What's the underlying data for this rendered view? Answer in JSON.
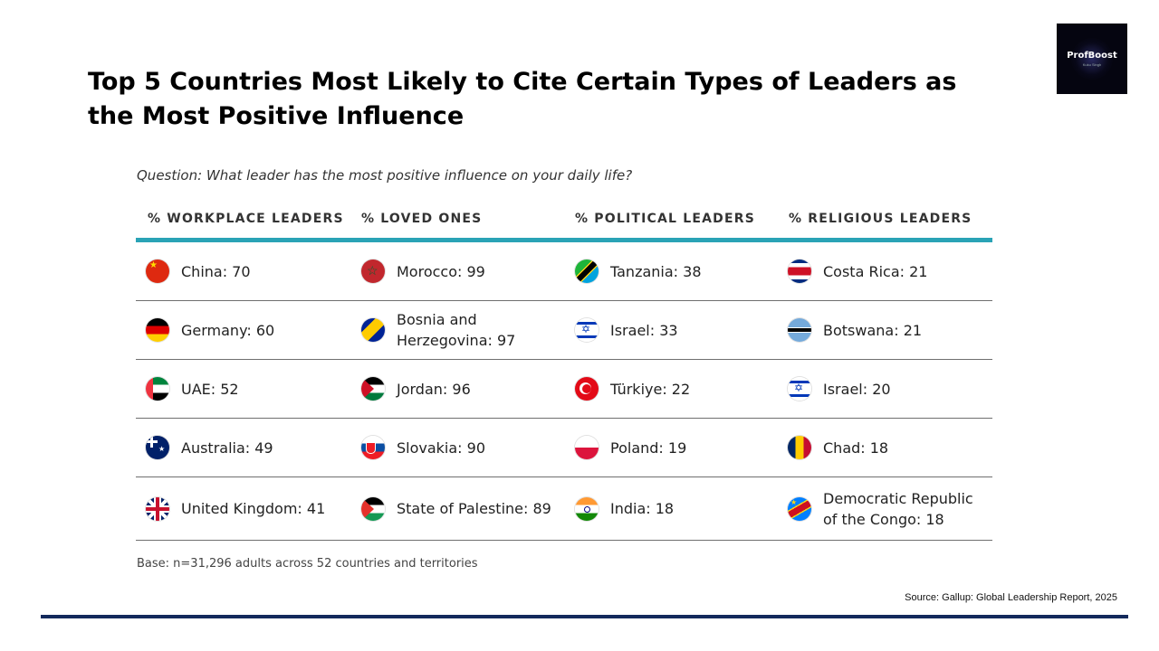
{
  "slide": {
    "title": "Top 5 Countries Most Likely to Cite Certain Types of Leaders as the Most Positive Influence",
    "logo_name": "ProfBoost",
    "logo_sub": "Kuku Singh",
    "source": "Source: Gallup: Global Leadership Report, 2025"
  },
  "figure": {
    "question": "Question: What leader has the most positive influence on your daily life?",
    "base": "Base: n=31,296 adults across 52 countries and territories",
    "accent_color": "#2aa3b6",
    "columns": [
      "% WORKPLACE LEADERS",
      "% LOVED ONES",
      "% POLITICAL LEADERS",
      "% RELIGIOUS LEADERS"
    ],
    "rows": [
      [
        {
          "text": "China: 70",
          "flag": "china-flag"
        },
        {
          "text": "Morocco: 99",
          "flag": "morocco-flag"
        },
        {
          "text": "Tanzania: 38",
          "flag": "tanzania-flag"
        },
        {
          "text": "Costa Rica: 21",
          "flag": "costa-rica-flag"
        }
      ],
      [
        {
          "text": "Germany: 60",
          "flag": "germany-flag"
        },
        {
          "text": "Bosnia and Herzegovina: 97",
          "flag": "bosnia-flag"
        },
        {
          "text": "Israel: 33",
          "flag": "israel-flag"
        },
        {
          "text": "Botswana: 21",
          "flag": "botswana-flag"
        }
      ],
      [
        {
          "text": "UAE: 52",
          "flag": "uae-flag"
        },
        {
          "text": "Jordan: 96",
          "flag": "jordan-flag"
        },
        {
          "text": "Türkiye: 22",
          "flag": "turkiye-flag"
        },
        {
          "text": "Israel: 20",
          "flag": "israel-flag"
        }
      ],
      [
        {
          "text": "Australia: 49",
          "flag": "australia-flag"
        },
        {
          "text": "Slovakia: 90",
          "flag": "slovakia-flag"
        },
        {
          "text": "Poland: 19",
          "flag": "poland-flag"
        },
        {
          "text": "Chad: 18",
          "flag": "chad-flag"
        }
      ],
      [
        {
          "text": "United Kingdom: 41",
          "flag": "uk-flag"
        },
        {
          "text": "State of Palestine: 89",
          "flag": "palestine-flag"
        },
        {
          "text": "India: 18",
          "flag": "india-flag"
        },
        {
          "text": "Democratic Republic of the Congo: 18",
          "flag": "drc-flag"
        }
      ]
    ]
  }
}
